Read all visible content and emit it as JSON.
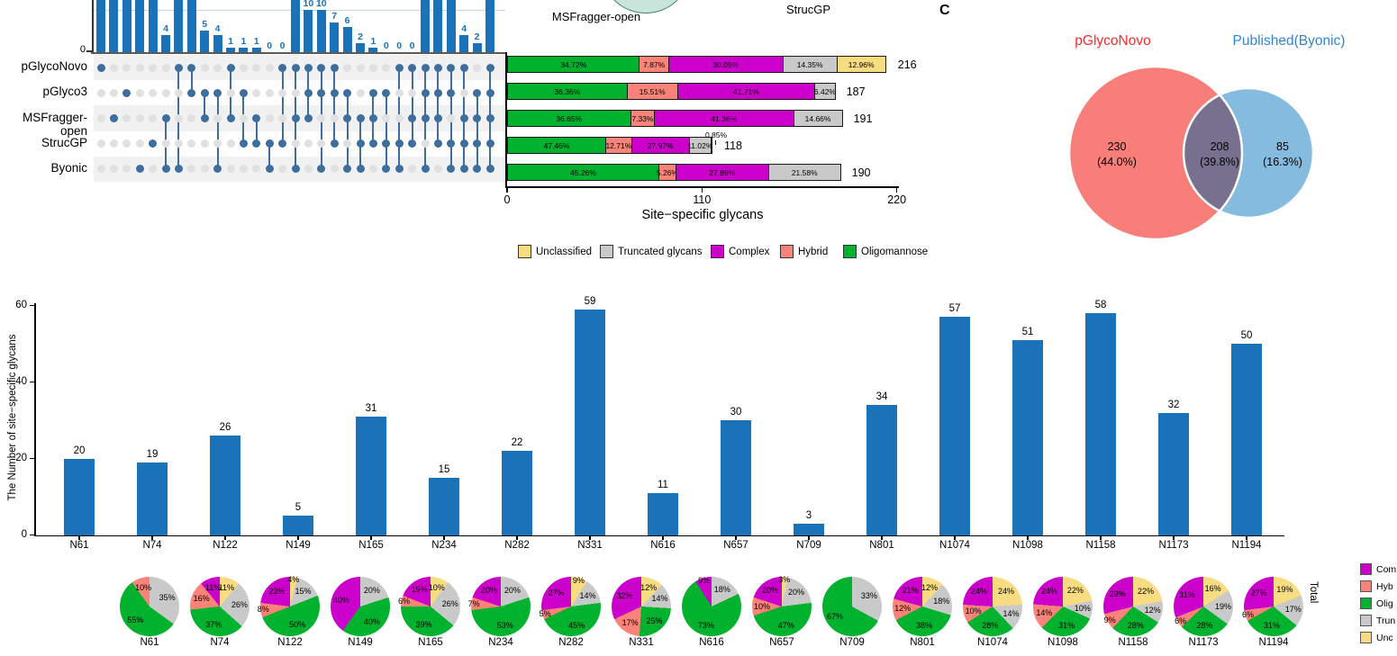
{
  "colors": {
    "bar_blue": "#1a73b8",
    "dot_dark": "#3e6e9e",
    "dot_light": "#e0e0e0",
    "stripe": "#f1f1f1",
    "axis_dark": "#595959",
    "gridline_blue": "#bdd7ee",
    "oligomannose_green": "#00b22d",
    "hybrid_salmon": "#f98378",
    "complex_magenta": "#cb00cb",
    "truncated_gray": "#c9c9c9",
    "unclassified_yellow": "#f7dc82",
    "venn_left_red": "#f87e79",
    "venn_right_blue": "#85bbdf",
    "venn_overlap": "#77708f",
    "venn_left_label": "#fb2b2a",
    "venn_right_label": "#2e86d1",
    "panelb_ellipse_fill": "#c9e5db",
    "panelb_ellipse_stroke": "#44836e"
  },
  "panel_b": {
    "msfragger_label": "MSFragger-open",
    "strucgp_label": "StrucGP"
  },
  "panel_c_label": "C",
  "legend_mid": {
    "items": [
      {
        "label": "Unclassified",
        "color": "unclassified_yellow"
      },
      {
        "label": "Truncated glycans",
        "color": "truncated_gray"
      },
      {
        "label": "Complex",
        "color": "complex_magenta"
      },
      {
        "label": "Hybrid",
        "color": "hybrid_salmon"
      },
      {
        "label": "Oligomannose",
        "color": "oligomannose_green"
      }
    ]
  },
  "right_legend": {
    "items": [
      {
        "label": "Com",
        "color": "complex_magenta"
      },
      {
        "label": "Hyb",
        "color": "hybrid_salmon"
      },
      {
        "label": "Olig",
        "color": "oligomannose_green"
      },
      {
        "label": "Trun",
        "color": "truncated_gray"
      },
      {
        "label": "Unc",
        "color": "unclassified_yellow"
      }
    ],
    "total_label": "Total"
  },
  "chart_data": [
    {
      "type": "bar",
      "name": "upset-intersection-sizes",
      "y_zero_label": "0",
      "rows": [
        "pGlycoNovo",
        "pGlyco3",
        "MSFragger-open",
        "StrucGP",
        "Byonic"
      ],
      "columns": [
        {
          "sets": [
            0
          ],
          "value": null,
          "label": ""
        },
        {
          "sets": [
            2
          ],
          "value": null,
          "label": ""
        },
        {
          "sets": [
            1
          ],
          "value": null,
          "label": ""
        },
        {
          "sets": [
            4
          ],
          "value": null,
          "label": ""
        },
        {
          "sets": [
            3
          ],
          "value": null,
          "label": ""
        },
        {
          "sets": [
            2,
            4
          ],
          "value": 4,
          "label": "4"
        },
        {
          "sets": [
            0,
            4
          ],
          "value": null,
          "label": ""
        },
        {
          "sets": [
            0,
            1
          ],
          "value": null,
          "label": ""
        },
        {
          "sets": [
            1,
            2
          ],
          "value": 5,
          "label": "5"
        },
        {
          "sets": [
            1,
            4
          ],
          "value": 4,
          "label": "4"
        },
        {
          "sets": [
            0,
            2
          ],
          "value": 1,
          "label": "1"
        },
        {
          "sets": [
            1,
            3
          ],
          "value": 1,
          "label": "1"
        },
        {
          "sets": [
            2,
            3
          ],
          "value": 1,
          "label": "1"
        },
        {
          "sets": [
            3,
            4
          ],
          "value": 0,
          "label": "0"
        },
        {
          "sets": [
            0,
            3
          ],
          "value": 0,
          "label": "0"
        },
        {
          "sets": [
            0,
            2,
            4
          ],
          "value": null,
          "label": ""
        },
        {
          "sets": [
            0,
            1,
            2
          ],
          "value": 10,
          "label": "10"
        },
        {
          "sets": [
            0,
            1,
            4
          ],
          "value": 10,
          "label": "10"
        },
        {
          "sets": [
            0,
            1,
            3
          ],
          "value": 7,
          "label": "7"
        },
        {
          "sets": [
            1,
            2,
            4
          ],
          "value": 6,
          "label": "6"
        },
        {
          "sets": [
            2,
            3,
            4
          ],
          "value": 2,
          "label": "2"
        },
        {
          "sets": [
            1,
            2,
            3
          ],
          "value": 1,
          "label": "1"
        },
        {
          "sets": [
            1,
            3,
            4
          ],
          "value": 0,
          "label": "0"
        },
        {
          "sets": [
            0,
            3,
            4
          ],
          "value": 0,
          "label": "0"
        },
        {
          "sets": [
            0,
            2,
            3
          ],
          "value": 0,
          "label": "0"
        },
        {
          "sets": [
            0,
            1,
            2,
            4
          ],
          "value": null,
          "label": ""
        },
        {
          "sets": [
            0,
            1,
            2,
            3
          ],
          "value": null,
          "label": ""
        },
        {
          "sets": [
            0,
            1,
            3,
            4
          ],
          "value": null,
          "label": ""
        },
        {
          "sets": [
            0,
            2,
            3,
            4
          ],
          "value": 4,
          "label": "4"
        },
        {
          "sets": [
            1,
            2,
            3,
            4
          ],
          "value": 2,
          "label": "2"
        },
        {
          "sets": [
            0,
            1,
            2,
            3,
            4
          ],
          "value": null,
          "label": ""
        }
      ]
    },
    {
      "type": "bar",
      "name": "glycan-type-percentage-stacked",
      "orientation": "horizontal",
      "x_ticks": [
        "0",
        "110",
        "220"
      ],
      "xlim": [
        0,
        220
      ],
      "x_label": "Site−specific glycans",
      "segment_order": [
        "Oligomannose",
        "Hybrid",
        "Complex",
        "Truncated glycans",
        "Unclassified"
      ],
      "callout_label": "0.85%",
      "rows": [
        {
          "tool": "pGlycoNovo",
          "total": 216,
          "segments": [
            {
              "type": "Oligomannose",
              "pct": 34.72,
              "label": "34.72%"
            },
            {
              "type": "Hybrid",
              "pct": 7.87,
              "label": "7.87%"
            },
            {
              "type": "Complex",
              "pct": 30.09,
              "label": "30.09%"
            },
            {
              "type": "Truncated glycans",
              "pct": 14.35,
              "label": "14.35%"
            },
            {
              "type": "Unclassified",
              "pct": 12.96,
              "label": "12.96%"
            }
          ]
        },
        {
          "tool": "pGlyco3",
          "total": 187,
          "segments": [
            {
              "type": "Oligomannose",
              "pct": 36.36,
              "label": "36.36%"
            },
            {
              "type": "Hybrid",
              "pct": 15.51,
              "label": "15.51%"
            },
            {
              "type": "Complex",
              "pct": 41.71,
              "label": "41.71%"
            },
            {
              "type": "Truncated glycans",
              "pct": 6.42,
              "label": "6.42%"
            }
          ]
        },
        {
          "tool": "MSFragger-open",
          "total": 191,
          "segments": [
            {
              "type": "Oligomannose",
              "pct": 36.65,
              "label": "36.65%"
            },
            {
              "type": "Hybrid",
              "pct": 7.33,
              "label": "7.33%"
            },
            {
              "type": "Complex",
              "pct": 41.36,
              "label": "41.36%"
            },
            {
              "type": "Truncated glycans",
              "pct": 14.66,
              "label": "14.66%"
            }
          ]
        },
        {
          "tool": "StrucGP",
          "total": 118,
          "segments": [
            {
              "type": "Oligomannose",
              "pct": 47.46,
              "label": "47.46%"
            },
            {
              "type": "Hybrid",
              "pct": 12.71,
              "label": "12.71%"
            },
            {
              "type": "Complex",
              "pct": 27.97,
              "label": "27.97%"
            },
            {
              "type": "Truncated glycans",
              "pct": 11.02,
              "label": "11.02%"
            },
            {
              "type": "Unclassified",
              "pct": 0.85,
              "label": ""
            }
          ]
        },
        {
          "tool": "Byonic",
          "total": 190,
          "segments": [
            {
              "type": "Oligomannose",
              "pct": 45.26,
              "label": "45.26%"
            },
            {
              "type": "Hybrid",
              "pct": 5.26,
              "label": "5.26%"
            },
            {
              "type": "Complex",
              "pct": 27.89,
              "label": "27.89%"
            },
            {
              "type": "Truncated glycans",
              "pct": 21.58,
              "label": "21.58%"
            }
          ]
        }
      ]
    },
    {
      "type": "venn",
      "name": "pglyconovo-vs-published",
      "left_label": "pGlycoNovo",
      "right_label": "Published(Byonic)",
      "left_value": "230",
      "left_pct": "(44.0%)",
      "overlap_value": "208",
      "overlap_pct": "(39.8%)",
      "right_value": "85",
      "right_pct": "(16.3%)"
    },
    {
      "type": "bar",
      "name": "site-specific-glycan-counts",
      "ylabel": "The Number of site−specific glycans",
      "yticks": [
        "0",
        "20",
        "40",
        "60"
      ],
      "ylim": [
        0,
        60
      ],
      "categories": [
        "N61",
        "N74",
        "N122",
        "N149",
        "N165",
        "N234",
        "N282",
        "N331",
        "N616",
        "N657",
        "N709",
        "N801",
        "N1074",
        "N1098",
        "N1158",
        "N1173",
        "N1194"
      ],
      "values": [
        20,
        19,
        26,
        5,
        31,
        15,
        22,
        59,
        11,
        30,
        3,
        34,
        57,
        51,
        58,
        32,
        50
      ]
    },
    {
      "type": "pie",
      "name": "site-glycan-composition",
      "slice_order_clockwise": [
        "Unclassified",
        "Truncated glycans",
        "Oligomannose",
        "Hybrid",
        "Complex"
      ],
      "sites": [
        {
          "site": "N61",
          "complex": 0,
          "hybrid": 10,
          "oligomannose": 55,
          "truncated": 35,
          "unclassified": 0
        },
        {
          "site": "N74",
          "complex": 11,
          "hybrid": 16,
          "oligomannose": 37,
          "truncated": 26,
          "unclassified": 11
        },
        {
          "site": "N122",
          "complex": 23,
          "hybrid": 8,
          "oligomannose": 50,
          "truncated": 15,
          "unclassified": 4
        },
        {
          "site": "N149",
          "complex": 40,
          "hybrid": 0,
          "oligomannose": 40,
          "truncated": 20,
          "unclassified": 0
        },
        {
          "site": "N165",
          "complex": 19,
          "hybrid": 6,
          "oligomannose": 39,
          "truncated": 26,
          "unclassified": 10
        },
        {
          "site": "N234",
          "complex": 20,
          "hybrid": 7,
          "oligomannose": 53,
          "truncated": 20,
          "unclassified": 0
        },
        {
          "site": "N282",
          "complex": 27,
          "hybrid": 5,
          "oligomannose": 45,
          "truncated": 14,
          "unclassified": 9
        },
        {
          "site": "N331",
          "complex": 32,
          "hybrid": 17,
          "oligomannose": 25,
          "truncated": 14,
          "unclassified": 12
        },
        {
          "site": "N616",
          "complex": 9,
          "hybrid": 0,
          "oligomannose": 73,
          "truncated": 18,
          "unclassified": 0
        },
        {
          "site": "N657",
          "complex": 20,
          "hybrid": 10,
          "oligomannose": 47,
          "truncated": 20,
          "unclassified": 3
        },
        {
          "site": "N709",
          "complex": 0,
          "hybrid": 0,
          "oligomannose": 67,
          "truncated": 33,
          "unclassified": 0
        },
        {
          "site": "N801",
          "complex": 21,
          "hybrid": 12,
          "oligomannose": 38,
          "truncated": 18,
          "unclassified": 12
        },
        {
          "site": "N1074",
          "complex": 24,
          "hybrid": 10,
          "oligomannose": 28,
          "truncated": 14,
          "unclassified": 24
        },
        {
          "site": "N1098",
          "complex": 24,
          "hybrid": 14,
          "oligomannose": 31,
          "truncated": 10,
          "unclassified": 22
        },
        {
          "site": "N1158",
          "complex": 29,
          "hybrid": 9,
          "oligomannose": 28,
          "truncated": 12,
          "unclassified": 22
        },
        {
          "site": "N1173",
          "complex": 31,
          "hybrid": 6,
          "oligomannose": 28,
          "truncated": 19,
          "unclassified": 16
        },
        {
          "site": "N1194",
          "complex": 27,
          "hybrid": 6,
          "oligomannose": 31,
          "truncated": 17,
          "unclassified": 19
        }
      ]
    }
  ]
}
